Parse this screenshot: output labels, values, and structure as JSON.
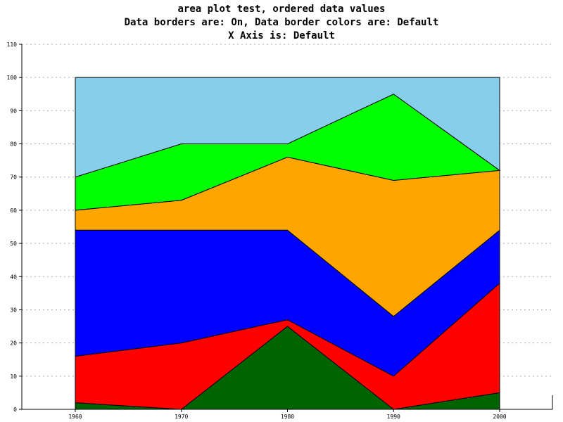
{
  "chart_data": {
    "type": "area",
    "stacked": true,
    "title": "area plot test, ordered data values",
    "subtitle_lines": [
      "Data borders are: On, Data border colors are: Default",
      "X Axis is: Default"
    ],
    "xlabel": "",
    "ylabel": "",
    "categories": [
      "1960",
      "1970",
      "1980",
      "1990",
      "2000"
    ],
    "ylim": [
      0,
      110
    ],
    "yticks": [
      "0",
      "10",
      "20",
      "30",
      "40",
      "50",
      "60",
      "70",
      "80",
      "90",
      "100",
      "110"
    ],
    "grid": {
      "horizontal": true,
      "style": "dotted"
    },
    "data_borders": true,
    "border_color": "#000000",
    "series": [
      {
        "color": "#006400",
        "values": [
          2,
          0,
          25,
          0,
          5
        ]
      },
      {
        "color": "#ff0000",
        "values": [
          14,
          20,
          2,
          10,
          33
        ]
      },
      {
        "color": "#0000ff",
        "values": [
          38,
          34,
          27,
          18,
          16
        ]
      },
      {
        "color": "#ffa500",
        "values": [
          6,
          9,
          22,
          41,
          18
        ]
      },
      {
        "color": "#00ff00",
        "values": [
          10,
          17,
          4,
          26,
          0
        ]
      },
      {
        "color": "#87ceeb",
        "values": [
          30,
          20,
          20,
          5,
          28
        ]
      }
    ]
  }
}
